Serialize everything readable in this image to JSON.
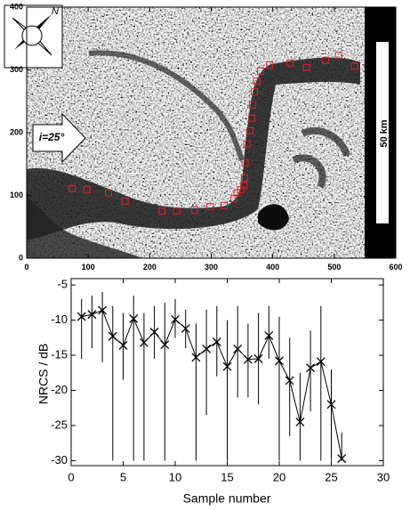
{
  "chart_data": [
    {
      "type": "scatter",
      "x": [
        74,
        98,
        133,
        160,
        220,
        244,
        273,
        298,
        321,
        337,
        342,
        348,
        353,
        354,
        355,
        358,
        363,
        366,
        367,
        370,
        374,
        380,
        395,
        428,
        455,
        486,
        507,
        533
      ],
      "y": [
        111,
        109,
        104,
        91,
        75,
        75,
        77,
        82,
        84,
        95,
        104,
        109,
        116,
        128,
        152,
        182,
        203,
        223,
        244,
        265,
        282,
        298,
        308,
        311,
        304,
        315,
        323,
        306
      ],
      "color": "#e0202a",
      "xlim": [
        0,
        600
      ],
      "ylim": [
        0,
        400
      ],
      "xticks": [
        0,
        100,
        200,
        300,
        400,
        500,
        600
      ],
      "yticks": [
        0,
        100,
        200,
        300,
        400
      ],
      "annotations": [
        "i=25°",
        "50 km",
        "N"
      ]
    },
    {
      "type": "errorbar",
      "x": [
        1,
        2,
        3,
        4,
        5,
        6,
        7,
        8,
        9,
        10,
        11,
        12,
        13,
        14,
        15,
        16,
        17,
        18,
        19,
        20,
        21,
        22,
        23,
        24,
        25,
        26
      ],
      "values": [
        -9.5,
        -9.2,
        -8.6,
        -12.3,
        -13.6,
        -9.8,
        -13.2,
        -11.7,
        -13.5,
        -9.9,
        -11.2,
        -15.3,
        -14.1,
        -13.1,
        -16.6,
        -14.1,
        -15.6,
        -15.5,
        -12.2,
        -15.8,
        -18.6,
        -24.5,
        -16.8,
        -15.9,
        -22.0,
        -29.7
      ],
      "lower": [
        -15.5,
        -14,
        -16,
        -30,
        -18.5,
        -30,
        -30,
        -15.5,
        -30,
        -12.5,
        -14,
        -30,
        -23.5,
        -18,
        -30,
        -21,
        -21,
        -22,
        -15.5,
        -30,
        -26.5,
        -30,
        -23,
        -30,
        -30,
        -30
      ],
      "upper": [
        -7,
        -6.5,
        -6,
        -8,
        -9,
        -6.5,
        -9,
        -8,
        -7.5,
        -7,
        -8.5,
        -10.5,
        -8.5,
        -8,
        -10,
        -8,
        -10.5,
        -9,
        -8,
        -9.5,
        -12.5,
        -17.5,
        -11.5,
        -8,
        -17,
        -26
      ],
      "color": "#000000",
      "xlim": [
        0,
        30
      ],
      "ylim": [
        -30.7,
        -4.1
      ],
      "xticks": [
        0,
        5,
        10,
        15,
        20,
        25,
        30
      ],
      "yticks": [
        -5,
        -10,
        -15,
        -20,
        -25,
        -30
      ],
      "xlabel": "Sample number",
      "ylabel": "NRCS / dB"
    }
  ]
}
